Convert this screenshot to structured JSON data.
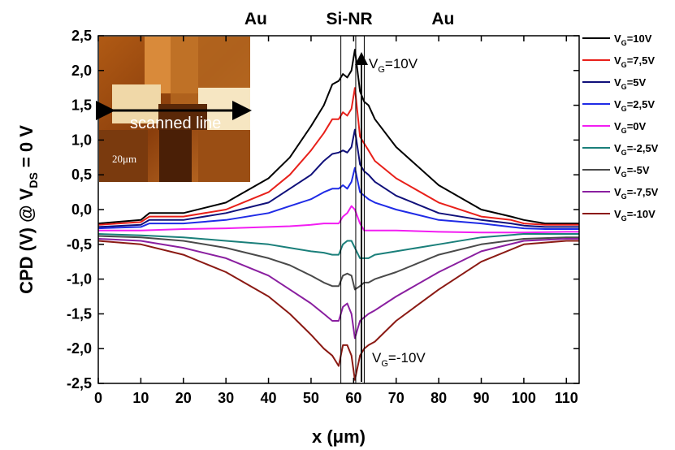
{
  "chart_data": {
    "type": "line",
    "xlabel": "x (μm)",
    "ylabel": "CPD (V) @ V",
    "ylabel_sub": "DS",
    "ylabel_tail": " = 0 V",
    "xlim": [
      0,
      113
    ],
    "ylim": [
      -2.5,
      2.5
    ],
    "xticks": [
      0,
      10,
      20,
      30,
      40,
      50,
      60,
      70,
      80,
      90,
      100,
      110
    ],
    "yticks": [
      "2,5",
      "2,0",
      "1,5",
      "1,0",
      "0,5",
      "0,0",
      "-0,5",
      "-1,0",
      "-1,5",
      "-2,0",
      "-2,5"
    ],
    "grid": false,
    "legend_position": "right",
    "region_labels": [
      {
        "text": "Au",
        "x": 37
      },
      {
        "text": "Si-NR",
        "x": 59
      },
      {
        "text": "Au",
        "x": 81
      }
    ],
    "vertical_lines": [
      57,
      60.5,
      62.5
    ],
    "annotations": [
      {
        "text_main": "V",
        "text_sub": "G",
        "text_tail": "=10V"
      },
      {
        "text_main": "V",
        "text_sub": "G",
        "text_tail": "=-10V"
      }
    ],
    "inset": {
      "label": "scanned line",
      "scale": "20μm"
    },
    "series": [
      {
        "name_main": "V",
        "name_sub": "G",
        "name_tail": "=10V",
        "color": "#000000",
        "x": [
          0,
          10,
          12,
          20,
          30,
          40,
          45,
          50,
          53,
          55,
          56.5,
          57.5,
          58.5,
          59.5,
          60.3,
          61.5,
          62.5,
          63.5,
          65,
          70,
          80,
          90,
          97,
          100,
          105,
          110,
          113
        ],
        "y": [
          -0.2,
          -0.15,
          -0.05,
          -0.05,
          0.1,
          0.45,
          0.75,
          1.2,
          1.5,
          1.8,
          1.85,
          1.95,
          1.9,
          2.0,
          2.3,
          1.7,
          1.55,
          1.5,
          1.3,
          0.9,
          0.35,
          0.0,
          -0.1,
          -0.15,
          -0.2,
          -0.2,
          -0.2
        ]
      },
      {
        "name_main": "V",
        "name_sub": "G",
        "name_tail": "=7,5V",
        "color": "#e8201a",
        "x": [
          0,
          10,
          12,
          20,
          30,
          40,
          45,
          50,
          53,
          55,
          56.5,
          57.5,
          58.5,
          59.5,
          60.3,
          61.5,
          62.5,
          63.5,
          65,
          70,
          80,
          90,
          97,
          100,
          105,
          110,
          113
        ],
        "y": [
          -0.22,
          -0.18,
          -0.1,
          -0.1,
          0.0,
          0.25,
          0.5,
          0.85,
          1.1,
          1.3,
          1.3,
          1.4,
          1.35,
          1.45,
          1.75,
          1.05,
          0.95,
          0.85,
          0.7,
          0.45,
          0.1,
          -0.1,
          -0.15,
          -0.2,
          -0.22,
          -0.22,
          -0.22
        ]
      },
      {
        "name_main": "V",
        "name_sub": "G",
        "name_tail": "=5V",
        "color": "#10107a",
        "x": [
          0,
          10,
          12,
          20,
          30,
          40,
          45,
          50,
          53,
          55,
          56.5,
          57.5,
          58.5,
          59.5,
          60.3,
          61.5,
          62.5,
          63.5,
          65,
          70,
          80,
          90,
          97,
          100,
          105,
          110,
          113
        ],
        "y": [
          -0.25,
          -0.22,
          -0.15,
          -0.15,
          -0.05,
          0.1,
          0.3,
          0.5,
          0.7,
          0.8,
          0.82,
          0.85,
          0.82,
          0.9,
          1.15,
          0.65,
          0.55,
          0.5,
          0.4,
          0.2,
          -0.05,
          -0.15,
          -0.2,
          -0.23,
          -0.25,
          -0.25,
          -0.25
        ]
      },
      {
        "name_main": "V",
        "name_sub": "G",
        "name_tail": "=2,5V",
        "color": "#1f2be6",
        "x": [
          0,
          10,
          12,
          20,
          30,
          40,
          45,
          50,
          53,
          55,
          56.5,
          57.5,
          58.5,
          59.5,
          60.3,
          61.5,
          62.5,
          63.5,
          65,
          70,
          80,
          90,
          97,
          100,
          105,
          110,
          113
        ],
        "y": [
          -0.27,
          -0.25,
          -0.2,
          -0.2,
          -0.15,
          -0.05,
          0.05,
          0.15,
          0.25,
          0.3,
          0.3,
          0.35,
          0.3,
          0.4,
          0.6,
          0.25,
          0.2,
          0.15,
          0.1,
          0.0,
          -0.15,
          -0.2,
          -0.25,
          -0.27,
          -0.28,
          -0.28,
          -0.28
        ]
      },
      {
        "name_main": "V",
        "name_sub": "G",
        "name_tail": "=0V",
        "color": "#f21df2",
        "x": [
          0,
          10,
          20,
          30,
          40,
          45,
          50,
          53,
          55,
          56.5,
          57.5,
          58.5,
          59.5,
          60.3,
          61.5,
          62.5,
          63.5,
          65,
          70,
          80,
          90,
          100,
          110,
          113
        ],
        "y": [
          -0.3,
          -0.3,
          -0.28,
          -0.27,
          -0.25,
          -0.24,
          -0.22,
          -0.2,
          -0.2,
          -0.2,
          -0.1,
          -0.05,
          0.05,
          0.0,
          -0.2,
          -0.3,
          -0.3,
          -0.3,
          -0.3,
          -0.32,
          -0.33,
          -0.33,
          -0.32,
          -0.32
        ]
      },
      {
        "name_main": "V",
        "name_sub": "G",
        "name_tail": "=-2,5V",
        "color": "#1a7f7a",
        "x": [
          0,
          10,
          20,
          30,
          40,
          45,
          50,
          53,
          55,
          56.5,
          57.5,
          58.5,
          59.5,
          60.3,
          61.5,
          62.5,
          63.5,
          65,
          70,
          80,
          90,
          100,
          110,
          113
        ],
        "y": [
          -0.35,
          -0.37,
          -0.4,
          -0.45,
          -0.5,
          -0.55,
          -0.6,
          -0.62,
          -0.65,
          -0.65,
          -0.5,
          -0.45,
          -0.45,
          -0.55,
          -0.7,
          -0.7,
          -0.7,
          -0.65,
          -0.6,
          -0.5,
          -0.4,
          -0.35,
          -0.35,
          -0.35
        ]
      },
      {
        "name_main": "V",
        "name_sub": "G",
        "name_tail": "=-5V",
        "color": "#4a4a4a",
        "x": [
          0,
          10,
          20,
          30,
          40,
          45,
          50,
          53,
          55,
          56.5,
          57.5,
          58.5,
          59.5,
          60.3,
          61.5,
          62.5,
          63.5,
          65,
          70,
          80,
          90,
          100,
          110,
          113
        ],
        "y": [
          -0.38,
          -0.4,
          -0.45,
          -0.55,
          -0.7,
          -0.8,
          -0.95,
          -1.05,
          -1.1,
          -1.1,
          -0.95,
          -0.92,
          -0.95,
          -1.15,
          -1.1,
          -1.05,
          -1.05,
          -1.0,
          -0.9,
          -0.65,
          -0.5,
          -0.42,
          -0.4,
          -0.4
        ]
      },
      {
        "name_main": "V",
        "name_sub": "G",
        "name_tail": "=-7,5V",
        "color": "#8a1fa0",
        "x": [
          0,
          10,
          20,
          30,
          40,
          45,
          50,
          53,
          55,
          56.5,
          57.5,
          58.5,
          59.5,
          60.3,
          61.5,
          62.5,
          63.5,
          65,
          70,
          80,
          90,
          100,
          110,
          113
        ],
        "y": [
          -0.42,
          -0.45,
          -0.55,
          -0.7,
          -0.95,
          -1.15,
          -1.35,
          -1.5,
          -1.6,
          -1.6,
          -1.4,
          -1.35,
          -1.5,
          -1.85,
          -1.6,
          -1.55,
          -1.5,
          -1.45,
          -1.25,
          -0.9,
          -0.6,
          -0.45,
          -0.42,
          -0.42
        ]
      },
      {
        "name_main": "V",
        "name_sub": "G",
        "name_tail": "=-10V",
        "color": "#8b1a14",
        "x": [
          0,
          10,
          20,
          30,
          40,
          45,
          50,
          53,
          55,
          56.5,
          57.5,
          58.5,
          59.5,
          60.3,
          61.5,
          62.5,
          63.5,
          65,
          70,
          80,
          90,
          100,
          110,
          113
        ],
        "y": [
          -0.45,
          -0.5,
          -0.65,
          -0.9,
          -1.25,
          -1.5,
          -1.8,
          -2.0,
          -2.1,
          -2.25,
          -1.95,
          -1.95,
          -2.1,
          -2.45,
          -2.1,
          -2.0,
          -1.95,
          -1.9,
          -1.6,
          -1.15,
          -0.75,
          -0.5,
          -0.45,
          -0.45
        ]
      }
    ]
  }
}
